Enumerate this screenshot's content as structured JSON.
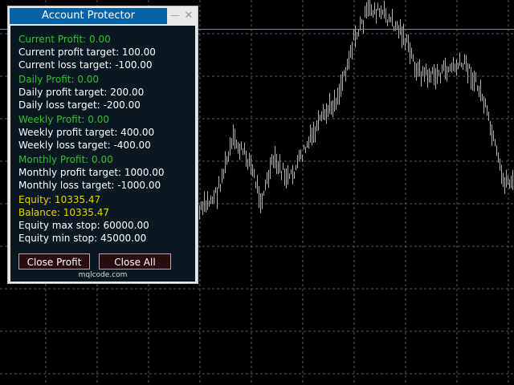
{
  "chart": {
    "background": "#000000",
    "grid_color": "#5a5a5a",
    "candle_color": "#b0b0b0",
    "price_line_color": "#7a8ea8"
  },
  "panel": {
    "title": "Account Protector",
    "minimize_icon": "minimize-icon",
    "close_icon": "close-icon",
    "current": {
      "profit": "Current Profit: 0.00",
      "profit_target": "Current profit target: 100.00",
      "loss_target": "Current loss target: -100.00"
    },
    "daily": {
      "profit": "Daily Profit: 0.00",
      "profit_target": "Daily profit target: 200.00",
      "loss_target": "Daily loss target: -200.00"
    },
    "weekly": {
      "profit": "Weekly Profit: 0.00",
      "profit_target": "Weekly profit target: 400.00",
      "loss_target": "Weekly loss target: -400.00"
    },
    "monthly": {
      "profit": "Monthly Profit: 0.00",
      "profit_target": "Monthly profit target: 1000.00",
      "loss_target": "Monthly loss target: -1000.00"
    },
    "equity": "Equity: 10335.47",
    "balance": "Balance: 10335.47",
    "equity_max": "Equity max stop: 60000.00",
    "equity_min": "Equity min stop: 45000.00",
    "close_profit_label": "Close Profit",
    "close_all_label": "Close All",
    "footer": "mqlcode.com",
    "colors": {
      "title_bar": "#0564a8",
      "profit_text": "#2fc02f",
      "equity_text": "#f0d000",
      "button_bg": "#2a0c0e"
    }
  }
}
